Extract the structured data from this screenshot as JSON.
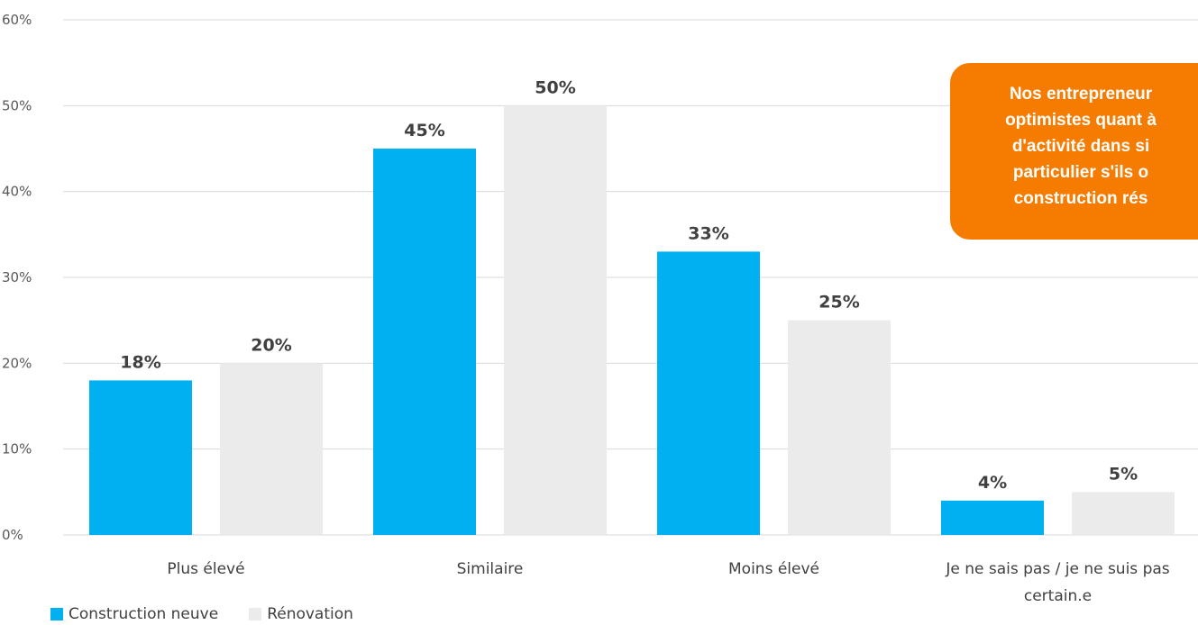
{
  "chart_data": {
    "type": "bar",
    "categories": [
      "Plus élevé",
      "Similaire",
      "Moins élevé",
      "Je ne sais pas / je ne suis pas\ncertain.e"
    ],
    "series": [
      {
        "name": "Construction neuve",
        "color": "#00B0F0",
        "values": [
          18,
          45,
          33,
          4
        ],
        "labels": [
          "18%",
          "45%",
          "33%",
          "4%"
        ]
      },
      {
        "name": "Rénovation",
        "color": "#EBEBEB",
        "values": [
          20,
          50,
          25,
          5
        ],
        "labels": [
          "20%",
          "50%",
          "25%",
          "5%"
        ]
      }
    ],
    "y_ticks": [
      "0%",
      "10%",
      "20%",
      "30%",
      "40%",
      "50%",
      "60%"
    ],
    "ylim": [
      0,
      60
    ],
    "grid": true,
    "legend_position": "bottom-left"
  },
  "callout": {
    "text": "Nos entrepreneur\noptimistes quant à\nd'activité dans si\nparticulier s'ils o\nconstruction rés",
    "color": "#F57C00"
  }
}
